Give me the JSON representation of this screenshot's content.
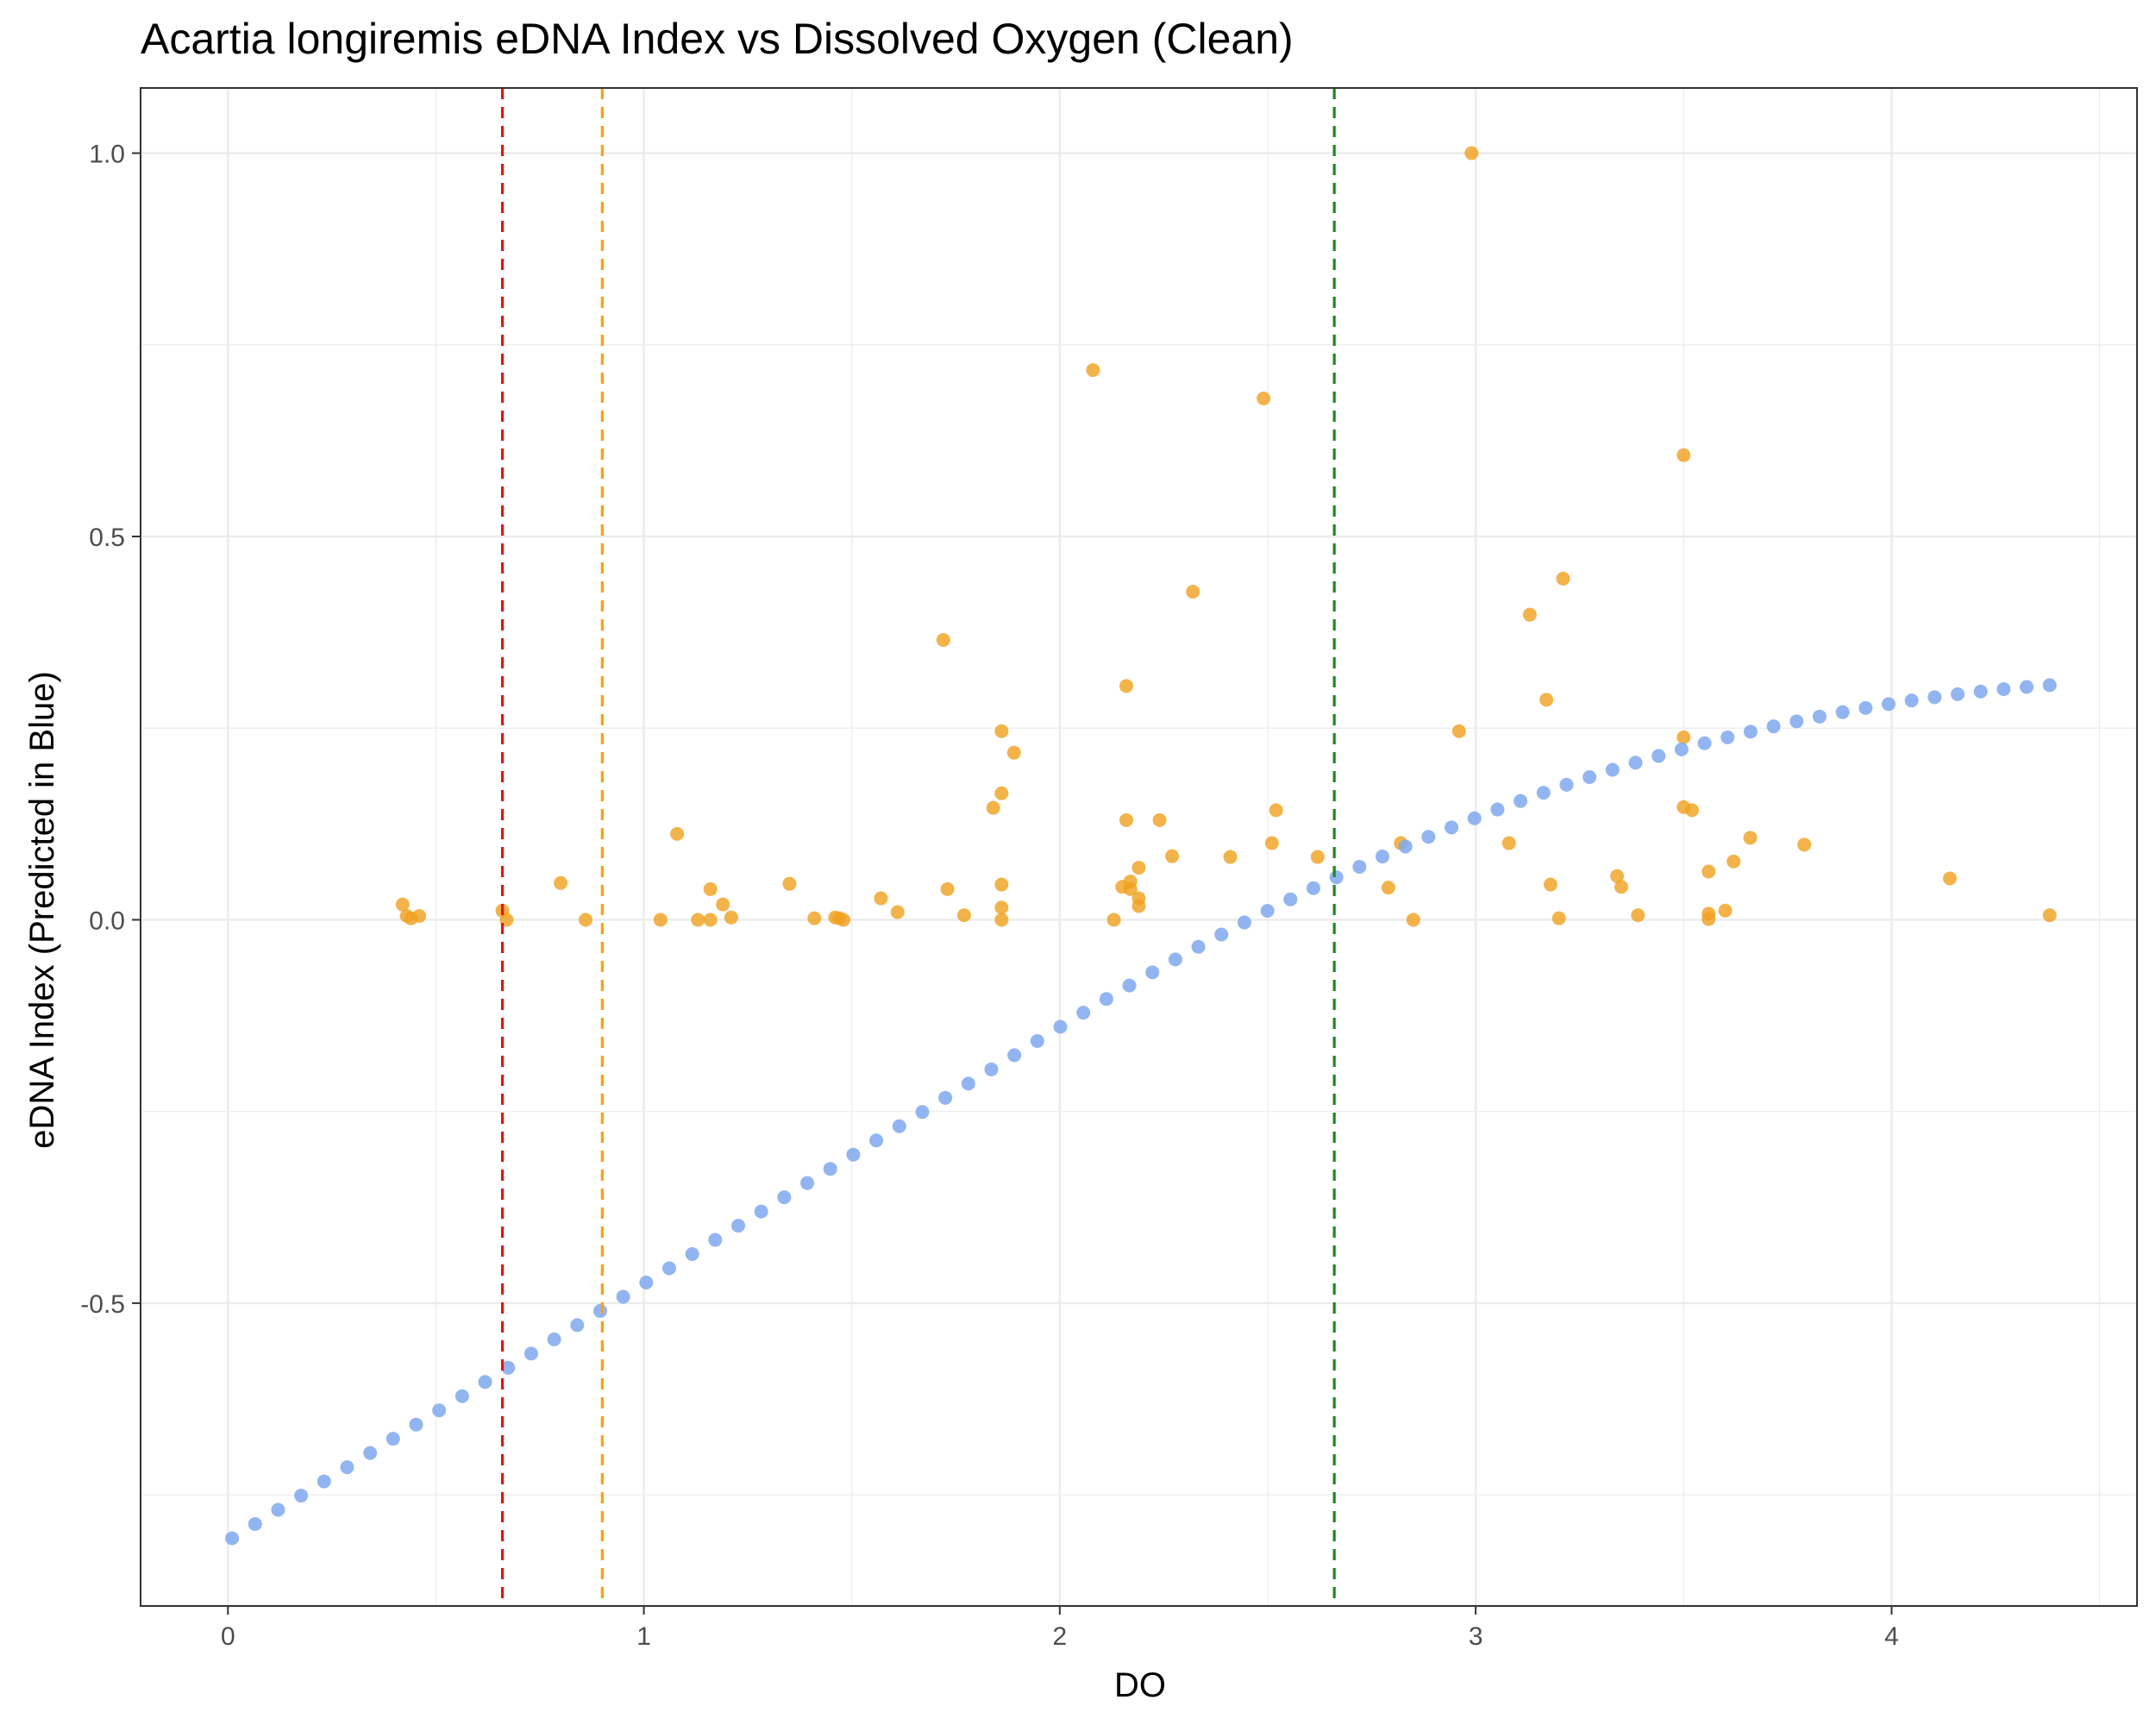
{
  "chart_data": {
    "type": "scatter",
    "title": "Acartia longiremis eDNA Index vs Dissolved Oxygen (Clean)",
    "xlabel": "DO",
    "ylabel": "eDNA Index (Predicted in Blue)",
    "xlim": [
      -0.21,
      4.59
    ],
    "ylim": [
      -0.895,
      1.085
    ],
    "x_ticks": [
      0,
      1,
      2,
      3,
      4
    ],
    "x_tick_labels": [
      "0",
      "1",
      "2",
      "3",
      "4"
    ],
    "y_ticks": [
      -0.5,
      0.0,
      0.5,
      1.0
    ],
    "y_tick_labels": [
      "-0.5",
      "0.0",
      "0.5",
      "1.0"
    ],
    "grid": true,
    "colors": {
      "observed": "#f0a01e",
      "predicted": "#7fa8f0",
      "line_red": "#e8120c",
      "line_orange": "#ff9f0f",
      "line_green": "#1c8a1c",
      "grid": "#ebebeb",
      "panel_border": "#333333"
    },
    "vlines": [
      {
        "x": 0.66,
        "color": "#e8120c"
      },
      {
        "x": 0.9,
        "color": "#ff9f0f"
      },
      {
        "x": 2.66,
        "color": "#1c8a1c"
      }
    ],
    "series": [
      {
        "color": "#f0a01e",
        "points": [
          [
            0.42,
            0.02
          ],
          [
            0.43,
            0.005
          ],
          [
            0.44,
            0.002
          ],
          [
            0.46,
            0.005
          ],
          [
            0.66,
            0.012
          ],
          [
            0.67,
            0.0
          ],
          [
            0.8,
            0.048
          ],
          [
            0.86,
            0.0
          ],
          [
            1.04,
            0.0
          ],
          [
            1.08,
            0.112
          ],
          [
            1.13,
            0.0
          ],
          [
            1.16,
            0.04
          ],
          [
            1.16,
            0.0
          ],
          [
            1.19,
            0.02
          ],
          [
            1.21,
            0.003
          ],
          [
            1.35,
            0.047
          ],
          [
            1.41,
            0.002
          ],
          [
            1.46,
            0.003
          ],
          [
            1.47,
            0.002
          ],
          [
            1.48,
            0.0
          ],
          [
            1.57,
            0.028
          ],
          [
            1.61,
            0.01
          ],
          [
            1.72,
            0.365
          ],
          [
            1.73,
            0.04
          ],
          [
            1.77,
            0.006
          ],
          [
            1.84,
            0.146
          ],
          [
            1.86,
            0.0
          ],
          [
            1.86,
            0.246
          ],
          [
            1.86,
            0.165
          ],
          [
            1.86,
            0.046
          ],
          [
            1.86,
            0.016
          ],
          [
            1.89,
            0.218
          ],
          [
            2.08,
            0.717
          ],
          [
            2.13,
            0.0
          ],
          [
            2.15,
            0.043
          ],
          [
            2.16,
            0.305
          ],
          [
            2.16,
            0.13
          ],
          [
            2.17,
            0.05
          ],
          [
            2.17,
            0.04
          ],
          [
            2.19,
            0.068
          ],
          [
            2.19,
            0.028
          ],
          [
            2.19,
            0.018
          ],
          [
            2.24,
            0.13
          ],
          [
            2.27,
            0.083
          ],
          [
            2.32,
            0.428
          ],
          [
            2.41,
            0.082
          ],
          [
            2.49,
            0.68
          ],
          [
            2.51,
            0.1
          ],
          [
            2.52,
            0.143
          ],
          [
            2.62,
            0.082
          ],
          [
            2.79,
            0.042
          ],
          [
            2.82,
            0.1
          ],
          [
            2.85,
            0.0
          ],
          [
            2.96,
            0.246
          ],
          [
            2.99,
            1.0
          ],
          [
            3.08,
            0.1
          ],
          [
            3.13,
            0.398
          ],
          [
            3.17,
            0.287
          ],
          [
            3.18,
            0.046
          ],
          [
            3.2,
            0.002
          ],
          [
            3.21,
            0.445
          ],
          [
            3.34,
            0.057
          ],
          [
            3.35,
            0.043
          ],
          [
            3.39,
            0.006
          ],
          [
            3.5,
            0.606
          ],
          [
            3.5,
            0.238
          ],
          [
            3.5,
            0.147
          ],
          [
            3.52,
            0.143
          ],
          [
            3.56,
            0.063
          ],
          [
            3.56,
            0.008
          ],
          [
            3.56,
            0.001
          ],
          [
            3.6,
            0.012
          ],
          [
            3.62,
            0.076
          ],
          [
            3.66,
            0.107
          ],
          [
            3.79,
            0.098
          ],
          [
            4.14,
            0.054
          ],
          [
            4.38,
            0.006
          ]
        ]
      },
      {
        "color": "#7fa8f0",
        "x_start": 0.01,
        "x_end": 4.38,
        "count": 80,
        "fit": {
          "a": -0.81,
          "b": 0.865,
          "c": 0.41,
          "d": 0.01
        }
      }
    ]
  }
}
